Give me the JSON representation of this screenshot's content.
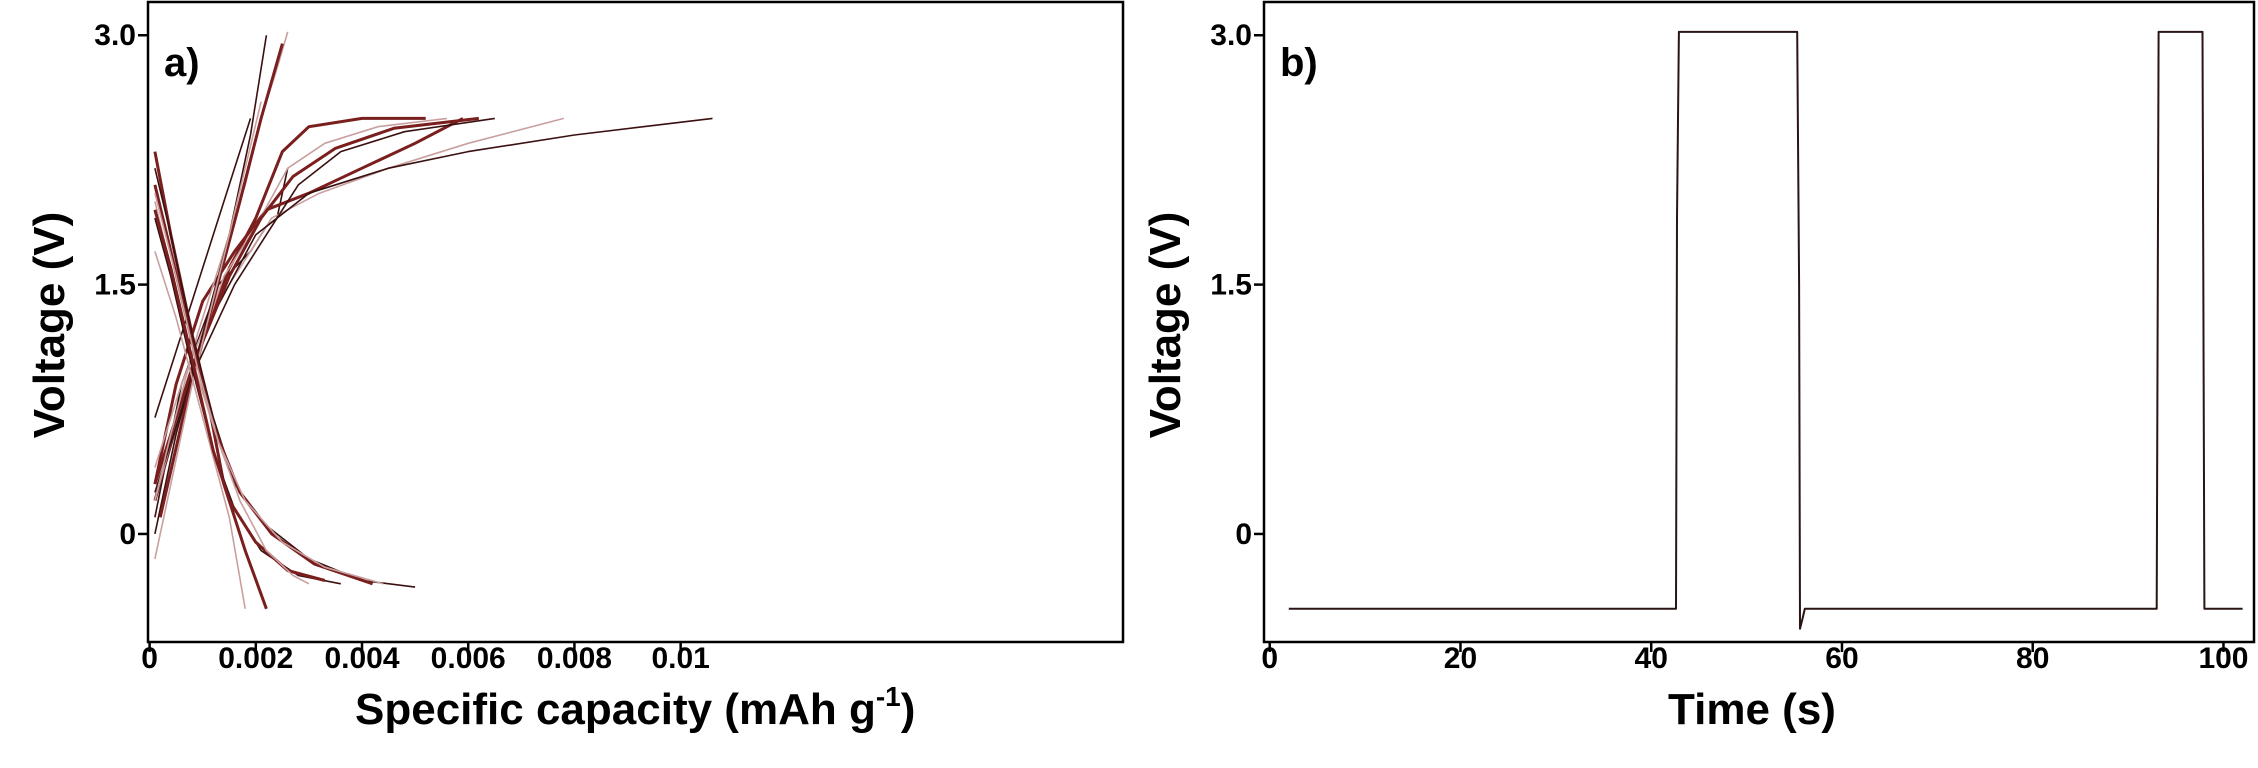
{
  "chart_data": [
    {
      "type": "line",
      "panel_label": "a)",
      "xlabel": "Specific capacity (mAh g",
      "xlabel_sup": "-1",
      "xlabel_end": ")",
      "ylabel": "Voltage (V)",
      "xlim": [
        -3e-05,
        0.01833
      ],
      "ylim": [
        -0.65,
        3.2
      ],
      "xticks": [
        0,
        0.002,
        0.004,
        0.006,
        0.008,
        0.01
      ],
      "xtick_labels": [
        "0",
        "0.002",
        "0.004",
        "0.006",
        "0.008",
        "0.01"
      ],
      "yticks": [
        0,
        1.5,
        3.0
      ],
      "ytick_labels": [
        "0",
        "1.5",
        "3.0"
      ],
      "grid": false,
      "colors": {
        "dark": "#3a1010",
        "mid": "#7a1e1e",
        "light": "#c9a0a0"
      },
      "series": [
        {
          "x": [
            0.0001,
            0.0006,
            0.0013,
            0.0019,
            0.0022,
            0.0024,
            0.0026
          ],
          "y": [
            0.1,
            0.9,
            1.5,
            1.7,
            1.85,
            1.9,
            2.2
          ]
        },
        {
          "x": [
            0.0001,
            0.0005,
            0.001,
            0.0016,
            0.0022,
            0.003,
            0.004,
            0.005,
            0.0059
          ],
          "y": [
            0.3,
            0.9,
            1.4,
            1.7,
            1.95,
            2.05,
            2.2,
            2.35,
            2.5
          ]
        },
        {
          "x": [
            0.0001,
            0.0006,
            0.0011,
            0.0017,
            0.0023,
            0.0032,
            0.0045,
            0.006,
            0.0078
          ],
          "y": [
            0.4,
            0.9,
            1.3,
            1.6,
            1.9,
            2.05,
            2.2,
            2.35,
            2.5
          ]
        },
        {
          "x": [
            0.0002,
            0.001,
            0.002,
            0.003,
            0.0045,
            0.006,
            0.008,
            0.0106
          ],
          "y": [
            0.3,
            1.2,
            1.8,
            2.05,
            2.2,
            2.3,
            2.4,
            2.5
          ]
        },
        {
          "x": [
            0.0001,
            0.0008,
            0.0015,
            0.002,
            0.0025,
            0.003,
            0.004,
            0.0052
          ],
          "y": [
            0.2,
            1.0,
            1.6,
            1.9,
            2.3,
            2.45,
            2.5,
            2.5
          ]
        },
        {
          "x": [
            0.0001,
            0.0007,
            0.0014,
            0.002,
            0.0026,
            0.0033,
            0.0043,
            0.0056
          ],
          "y": [
            0.2,
            0.9,
            1.55,
            1.85,
            2.2,
            2.35,
            2.45,
            2.5
          ]
        },
        {
          "x": [
            0.0001,
            0.0008,
            0.0016,
            0.0022,
            0.0028,
            0.0036,
            0.0048,
            0.0065
          ],
          "y": [
            0.25,
            0.95,
            1.5,
            1.8,
            2.1,
            2.3,
            2.42,
            2.5
          ]
        },
        {
          "x": [
            0.0001,
            0.0008,
            0.0015,
            0.0021,
            0.0027,
            0.0035,
            0.0046,
            0.0062
          ],
          "y": [
            0.3,
            1.0,
            1.55,
            1.9,
            2.15,
            2.32,
            2.44,
            2.5
          ]
        },
        {
          "x": [
            0.0001,
            0.0004,
            0.0009,
            0.0014,
            0.0018,
            0.0021,
            0.0024,
            0.0026
          ],
          "y": [
            0.2,
            0.6,
            1.2,
            1.7,
            2.1,
            2.5,
            2.8,
            3.02
          ]
        },
        {
          "x": [
            0.0001,
            0.0005,
            0.001,
            0.0015,
            0.0019,
            0.0022
          ],
          "y": [
            0.0,
            0.6,
            1.2,
            1.8,
            2.4,
            3.0
          ]
        },
        {
          "x": [
            0.0002,
            0.0007,
            0.0012,
            0.0017,
            0.0021,
            0.0025
          ],
          "y": [
            0.1,
            0.8,
            1.4,
            2.0,
            2.5,
            2.95
          ]
        },
        {
          "x": [
            0.0001,
            0.0008,
            0.0015,
            0.0021
          ],
          "y": [
            -0.15,
            0.9,
            1.8,
            2.6
          ]
        },
        {
          "x": [
            0.0001,
            0.0007,
            0.0014,
            0.0019
          ],
          "y": [
            0.7,
            1.3,
            2.0,
            2.5
          ]
        },
        {
          "x": [
            0.0001,
            0.0004,
            0.0008,
            0.0011,
            0.0014,
            0.0018,
            0.0022
          ],
          "y": [
            2.3,
            1.8,
            1.2,
            0.8,
            0.3,
            -0.1,
            -0.45
          ]
        },
        {
          "x": [
            0.0001,
            0.0005,
            0.001,
            0.0015,
            0.0018
          ],
          "y": [
            1.7,
            1.3,
            0.7,
            0.1,
            -0.45
          ]
        },
        {
          "x": [
            0.0001,
            0.0004,
            0.0008,
            0.0012,
            0.0016,
            0.0022,
            0.003,
            0.004,
            0.005
          ],
          "y": [
            2.2,
            1.8,
            1.2,
            0.7,
            0.3,
            0.05,
            -0.15,
            -0.28,
            -0.32
          ]
        },
        {
          "x": [
            0.0001,
            0.0004,
            0.0008,
            0.0012,
            0.0017,
            0.0023,
            0.0031,
            0.0042
          ],
          "y": [
            2.1,
            1.7,
            1.15,
            0.65,
            0.25,
            0.0,
            -0.18,
            -0.3
          ]
        },
        {
          "x": [
            0.0001,
            0.0004,
            0.0008,
            0.0013,
            0.0018,
            0.0025,
            0.0033,
            0.0044
          ],
          "y": [
            2.0,
            1.6,
            1.05,
            0.55,
            0.2,
            -0.05,
            -0.2,
            -0.3
          ]
        },
        {
          "x": [
            0.0001,
            0.0004,
            0.0008,
            0.0012,
            0.0016,
            0.0021,
            0.0028,
            0.0036
          ],
          "y": [
            1.9,
            1.55,
            1.0,
            0.5,
            0.15,
            -0.1,
            -0.25,
            -0.3
          ]
        },
        {
          "x": [
            0.0001,
            0.0004,
            0.0008,
            0.0012,
            0.0015,
            0.002,
            0.0026,
            0.0033
          ],
          "y": [
            1.95,
            1.6,
            1.05,
            0.5,
            0.2,
            -0.05,
            -0.22,
            -0.28
          ]
        },
        {
          "x": [
            0.0001,
            0.0005,
            0.0009,
            0.0013,
            0.0017,
            0.0022,
            0.0027,
            0.003
          ],
          "y": [
            2.05,
            1.55,
            1.0,
            0.55,
            0.2,
            -0.1,
            -0.25,
            -0.3
          ]
        }
      ]
    },
    {
      "type": "line",
      "panel_label": "b)",
      "xlabel": "Time (s)",
      "ylabel": "Voltage (V)",
      "xlim": [
        -0.6,
        103.2
      ],
      "ylim": [
        -0.65,
        3.2
      ],
      "xticks": [
        0,
        20,
        40,
        60,
        80,
        100
      ],
      "xtick_labels": [
        "0",
        "20",
        "40",
        "60",
        "80",
        "100"
      ],
      "yticks": [
        0,
        1.5,
        3.0
      ],
      "ytick_labels": [
        "0",
        "1.5",
        "3.0"
      ],
      "grid": false,
      "colors": {
        "line": "#2a1414"
      },
      "series": [
        {
          "x": [
            2,
            42.6,
            42.7,
            42.9,
            55.3,
            55.5,
            55.6,
            55.9,
            56.1,
            93.0,
            93.2,
            97.8,
            98.0,
            102
          ],
          "y": [
            -0.45,
            -0.45,
            1.9,
            3.02,
            3.02,
            1.5,
            -0.57,
            -0.5,
            -0.45,
            -0.45,
            3.02,
            3.02,
            -0.45,
            -0.45
          ]
        }
      ]
    }
  ]
}
